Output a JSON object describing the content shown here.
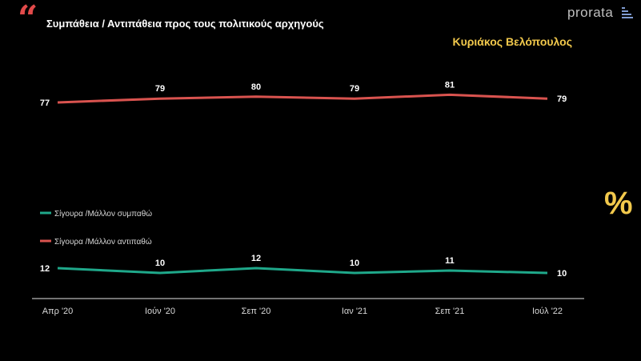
{
  "header": {
    "title": "Συμπάθεια / Αντιπάθεια προς τους πολιτικούς αρχηγούς",
    "brand": "prorata",
    "person": "Κυριάκος Βελόπουλος",
    "unit_badge": "%"
  },
  "colors": {
    "accent": "#f2c94c",
    "quote": "#e24a4a",
    "series_like": "#1fa88a",
    "series_dislike": "#d9534f"
  },
  "icons": {
    "quote": "quote-icon",
    "brand": "prorata-bars-icon"
  },
  "chart_data": {
    "type": "line",
    "categories": [
      "Απρ '20",
      "Ιούν '20",
      "Σεπ '20",
      "Ιαν '21",
      "Σεπ '21",
      "Ιούλ '22"
    ],
    "series": [
      {
        "name": "Σίγουρα /Μάλλον συμπαθώ",
        "values": [
          12,
          10,
          12,
          10,
          11,
          10
        ],
        "color": "#1fa88a"
      },
      {
        "name": "Σίγουρα /Μάλλον αντιπαθώ",
        "values": [
          77,
          79,
          80,
          79,
          81,
          79
        ],
        "color": "#d9534f"
      }
    ],
    "title": "Συμπάθεια / Αντιπάθεια προς τους πολιτικούς αρχηγούς",
    "xlabel": "",
    "ylabel": "",
    "ylim": [
      0,
      100
    ],
    "grid": false,
    "legend": "middle-left"
  }
}
